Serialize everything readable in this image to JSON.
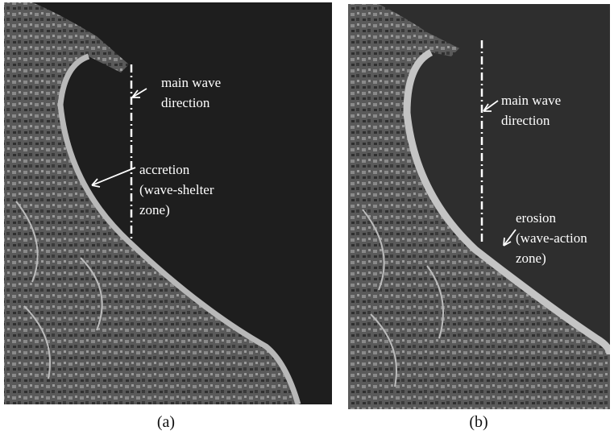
{
  "panels": [
    {
      "caption": "(a)",
      "annotations": [
        {
          "lines": [
            "main wave",
            "direction"
          ]
        },
        {
          "lines": [
            "accretion",
            "(wave-shelter",
            "zone)"
          ]
        }
      ]
    },
    {
      "caption": "(b)",
      "annotations": [
        {
          "lines": [
            "main wave",
            "direction"
          ]
        },
        {
          "lines": [
            "erosion",
            "(wave-action",
            "zone)"
          ]
        }
      ]
    }
  ]
}
